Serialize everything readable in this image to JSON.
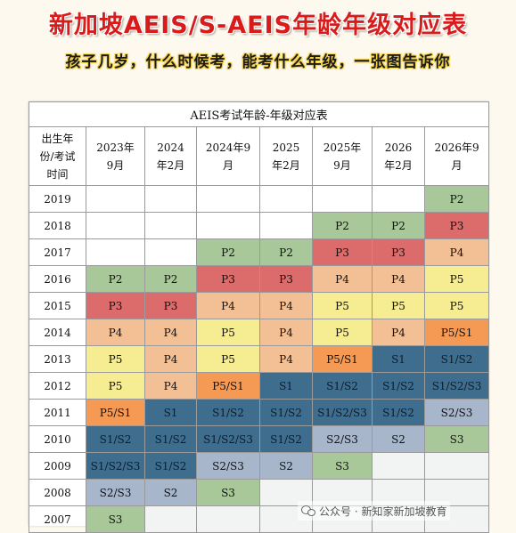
{
  "title": "新加坡AEIS/S-AEIS年龄年级对应表",
  "subtitle": "孩子几岁，什么时候考，能考什么年级，一张图告诉你",
  "table": {
    "caption": "AEIS考试年龄-年级对应表",
    "corner_header": "出生年份/考试时间",
    "columns": [
      "2023年9月",
      "2024年2月",
      "2024年9月",
      "2025年2月",
      "2025年9月",
      "2026年2月",
      "2026年9月"
    ],
    "rows": [
      {
        "year": "2019",
        "cells": [
          "",
          "",
          "",
          "",
          "",
          "",
          "P2"
        ]
      },
      {
        "year": "2018",
        "cells": [
          "",
          "",
          "",
          "",
          "P2",
          "P2",
          "P3"
        ]
      },
      {
        "year": "2017",
        "cells": [
          "",
          "",
          "P2",
          "P2",
          "P3",
          "P3",
          "P4"
        ]
      },
      {
        "year": "2016",
        "cells": [
          "P2",
          "P2",
          "P3",
          "P3",
          "P4",
          "P4",
          "P5"
        ]
      },
      {
        "year": "2015",
        "cells": [
          "P3",
          "P3",
          "P4",
          "P4",
          "P5",
          "P5",
          "P5"
        ]
      },
      {
        "year": "2014",
        "cells": [
          "P4",
          "P4",
          "P5",
          "P4",
          "P5",
          "P4",
          "P5/S1"
        ]
      },
      {
        "year": "2013",
        "cells": [
          "P5",
          "P4",
          "P5",
          "P4",
          "P5/S1",
          "S1",
          "S1/S2"
        ]
      },
      {
        "year": "2012",
        "cells": [
          "P5",
          "P4",
          "P5/S1",
          "S1",
          "S1/S2",
          "S1/S2",
          "S1/S2/S3"
        ]
      },
      {
        "year": "2011",
        "cells": [
          "P5/S1",
          "S1",
          "S1/S2",
          "S1/S2",
          "S1/S2/S3",
          "S1/S2",
          "S2/S3"
        ]
      },
      {
        "year": "2010",
        "cells": [
          "S1/S2",
          "S1/S2",
          "S1/S2/S3",
          "S1/S2",
          "S2/S3",
          "S2",
          "S3"
        ]
      },
      {
        "year": "2009",
        "cells": [
          "S1/S2/S3",
          "S1/S2",
          "S2/S3",
          "S2",
          "S3",
          "",
          ""
        ]
      },
      {
        "year": "2008",
        "cells": [
          "S2/S3",
          "S2",
          "S3",
          "",
          "",
          "",
          ""
        ]
      },
      {
        "year": "2007",
        "cells": [
          "S3",
          "",
          "",
          "",
          "",
          "",
          ""
        ]
      }
    ]
  },
  "colors": {
    "P2": "#a8c89a",
    "P3": "#dc6b6b",
    "P4": "#f3bf95",
    "P5": "#f6ec92",
    "P5/S1": "#f59a55",
    "S1": "#3f6d8e",
    "S1/S2": "#3f6d8e",
    "S1/S2/S3": "#3f6d8e",
    "S2/S3": "#a8b6cc",
    "S2": "#a8b6cc",
    "S3": "#a8c89a"
  },
  "watermark": {
    "icon": "wechat-icon",
    "text": "公众号 · 新知家新加坡教育"
  }
}
